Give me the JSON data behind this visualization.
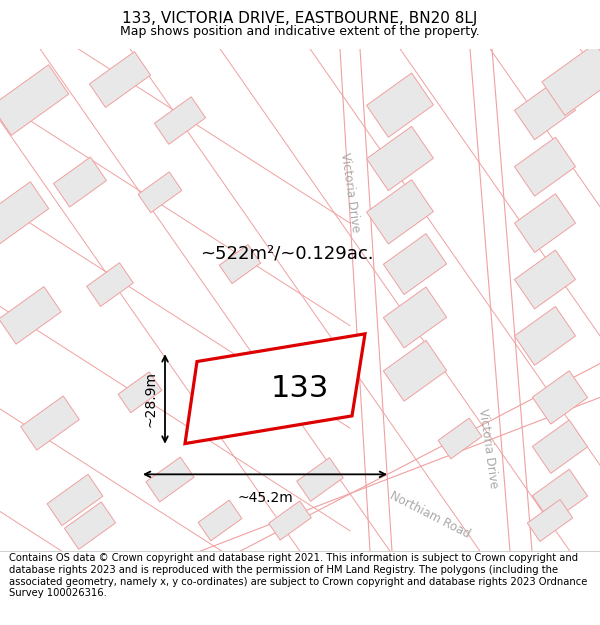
{
  "title": "133, VICTORIA DRIVE, EASTBOURNE, BN20 8LJ",
  "subtitle": "Map shows position and indicative extent of the property.",
  "footer": "Contains OS data © Crown copyright and database right 2021. This information is subject to Crown copyright and database rights 2023 and is reproduced with the permission of HM Land Registry. The polygons (including the associated geometry, namely x, y co-ordinates) are subject to Crown copyright and database rights 2023 Ordnance Survey 100026316.",
  "area_text": "~522m²/~0.129ac.",
  "label_133": "133",
  "dim_width": "~45.2m",
  "dim_height": "~28.9m",
  "street_label_1": "Victoria Drive",
  "street_label_2": "Victoria Drive",
  "street_label_3": "Northiam Road",
  "title_fontsize": 11,
  "subtitle_fontsize": 9,
  "footer_fontsize": 7.2,
  "map_bg": "#ffffff",
  "building_fill": "#e8e8e8",
  "building_edge": "#f0a0a0",
  "road_line_color": "#f0a0a0",
  "highlight_color": "#dd0000",
  "street_text_color": "#aaaaaa"
}
